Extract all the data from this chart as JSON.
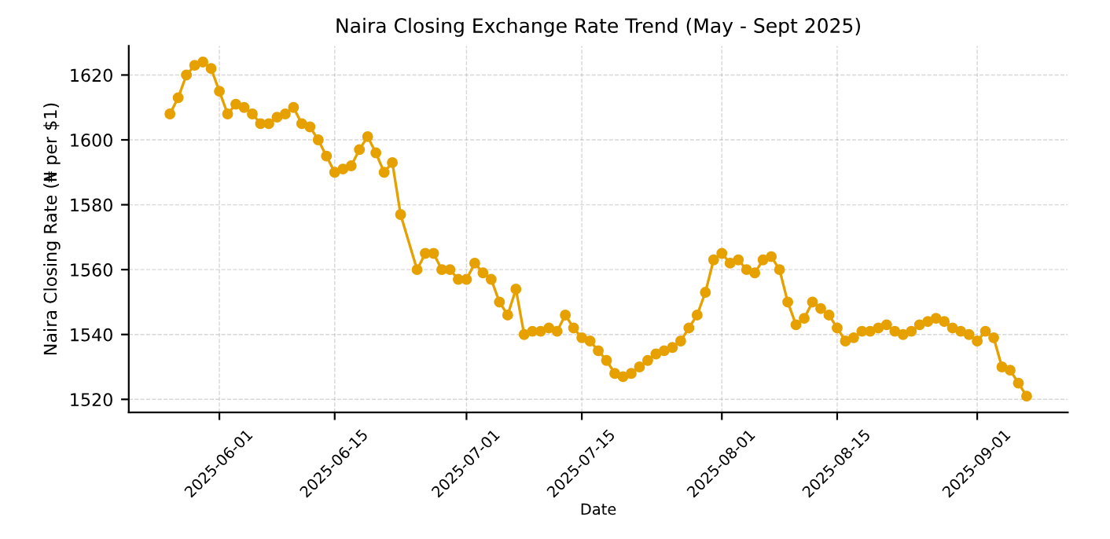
{
  "chart_data": {
    "type": "line",
    "title": "Naira Closing Exchange Rate Trend (May - Sept 2025)",
    "xlabel": "Date",
    "ylabel": "Naira Closing Rate (₦ per $1)",
    "x": [
      "2025-05-26",
      "2025-05-27",
      "2025-05-28",
      "2025-05-29",
      "2025-05-30",
      "2025-05-31",
      "2025-06-01",
      "2025-06-02",
      "2025-06-03",
      "2025-06-04",
      "2025-06-05",
      "2025-06-06",
      "2025-06-07",
      "2025-06-08",
      "2025-06-09",
      "2025-06-10",
      "2025-06-11",
      "2025-06-12",
      "2025-06-13",
      "2025-06-14",
      "2025-06-15",
      "2025-06-16",
      "2025-06-17",
      "2025-06-18",
      "2025-06-19",
      "2025-06-20",
      "2025-06-21",
      "2025-06-22",
      "2025-06-23",
      "2025-06-25",
      "2025-06-26",
      "2025-06-27",
      "2025-06-28",
      "2025-06-29",
      "2025-06-30",
      "2025-07-01",
      "2025-07-02",
      "2025-07-03",
      "2025-07-04",
      "2025-07-05",
      "2025-07-06",
      "2025-07-07",
      "2025-07-08",
      "2025-07-09",
      "2025-07-10",
      "2025-07-11",
      "2025-07-12",
      "2025-07-13",
      "2025-07-14",
      "2025-07-15",
      "2025-07-16",
      "2025-07-17",
      "2025-07-18",
      "2025-07-19",
      "2025-07-20",
      "2025-07-21",
      "2025-07-22",
      "2025-07-23",
      "2025-07-24",
      "2025-07-25",
      "2025-07-26",
      "2025-07-27",
      "2025-07-28",
      "2025-07-29",
      "2025-07-30",
      "2025-07-31",
      "2025-08-01",
      "2025-08-02",
      "2025-08-03",
      "2025-08-04",
      "2025-08-05",
      "2025-08-06",
      "2025-08-07",
      "2025-08-08",
      "2025-08-09",
      "2025-08-10",
      "2025-08-11",
      "2025-08-12",
      "2025-08-13",
      "2025-08-14",
      "2025-08-15",
      "2025-08-16",
      "2025-08-17",
      "2025-08-18",
      "2025-08-19",
      "2025-08-20",
      "2025-08-21",
      "2025-08-22",
      "2025-08-23",
      "2025-08-24",
      "2025-08-25",
      "2025-08-26",
      "2025-08-27",
      "2025-08-28",
      "2025-08-29",
      "2025-08-30",
      "2025-08-31",
      "2025-09-01",
      "2025-09-02",
      "2025-09-03",
      "2025-09-04",
      "2025-09-05",
      "2025-09-06",
      "2025-09-07"
    ],
    "series": [
      {
        "color": "#e6a100",
        "values": [
          1608,
          1613,
          1620,
          1623,
          1624,
          1622,
          1615,
          1608,
          1611,
          1610,
          1608,
          1605,
          1605,
          1607,
          1608,
          1610,
          1605,
          1604,
          1600,
          1595,
          1590,
          1591,
          1592,
          1597,
          1601,
          1596,
          1590,
          1593,
          1577,
          1560,
          1565,
          1565,
          1560,
          1560,
          1557,
          1557,
          1562,
          1559,
          1557,
          1550,
          1546,
          1554,
          1540,
          1541,
          1541,
          1542,
          1541,
          1546,
          1542,
          1539,
          1538,
          1535,
          1532,
          1528,
          1527,
          1528,
          1530,
          1532,
          1534,
          1535,
          1536,
          1538,
          1542,
          1546,
          1553,
          1563,
          1565,
          1562,
          1563,
          1560,
          1559,
          1563,
          1564,
          1560,
          1550,
          1543,
          1545,
          1550,
          1548,
          1546,
          1542,
          1538,
          1539,
          1541,
          1541,
          1542,
          1543,
          1541,
          1540,
          1541,
          1543,
          1544,
          1545,
          1544,
          1542,
          1541,
          1540,
          1538,
          1541,
          1539,
          1530,
          1529,
          1525,
          1521
        ]
      }
    ],
    "xlim": [
      "2025-05-21",
      "2025-09-12"
    ],
    "xticks": [
      {
        "value": "2025-06-01",
        "label": "2025-06-01"
      },
      {
        "value": "2025-06-15",
        "label": "2025-06-15"
      },
      {
        "value": "2025-07-01",
        "label": "2025-07-01"
      },
      {
        "value": "2025-07-15",
        "label": "2025-07-15"
      },
      {
        "value": "2025-08-01",
        "label": "2025-08-01"
      },
      {
        "value": "2025-08-15",
        "label": "2025-08-15"
      },
      {
        "value": "2025-09-01",
        "label": "2025-09-01"
      }
    ],
    "ylim": [
      1516,
      1629
    ],
    "yticks": [
      1520,
      1540,
      1560,
      1580,
      1600,
      1620
    ],
    "grid": true,
    "marker": "circle",
    "line_style": "solid"
  }
}
